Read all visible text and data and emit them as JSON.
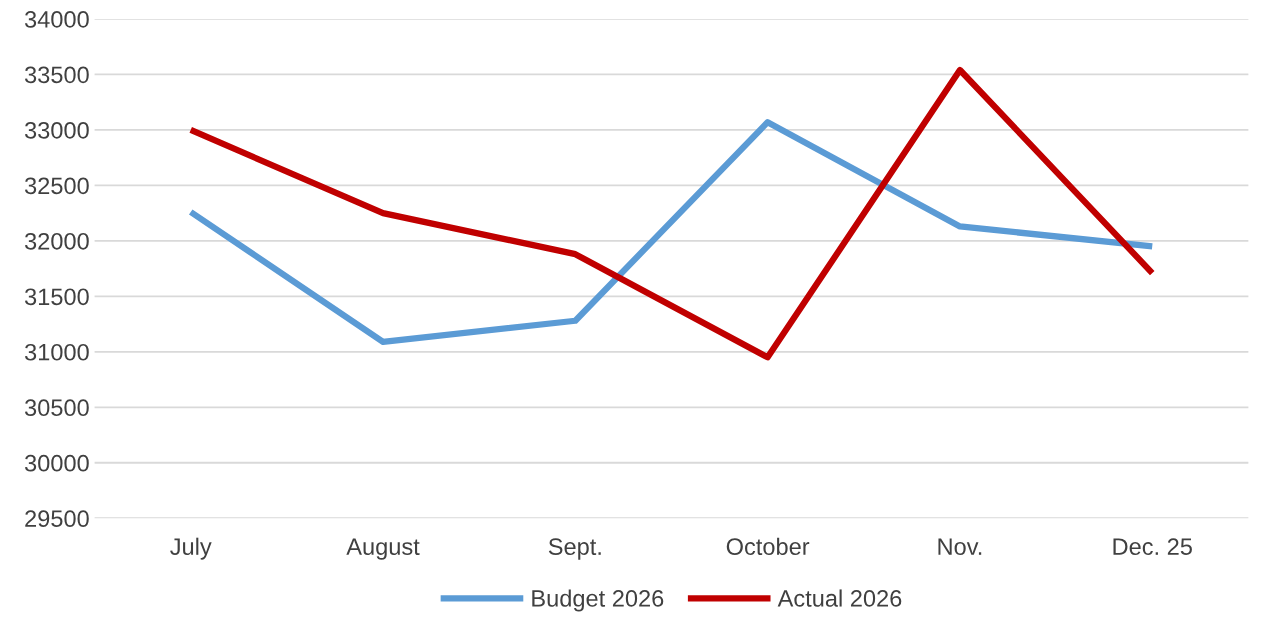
{
  "chart_data": {
    "type": "line",
    "categories": [
      "July",
      "August",
      "Sept.",
      "October",
      "Nov.",
      "Dec. 25"
    ],
    "series": [
      {
        "name": "Budget 2026",
        "color": "#5b9bd5",
        "values": [
          32260,
          31090,
          31280,
          33070,
          32130,
          31950
        ]
      },
      {
        "name": "Actual 2026",
        "color": "#c00000",
        "values": [
          33000,
          32250,
          31880,
          30950,
          33540,
          31710
        ]
      }
    ],
    "ylim": [
      29500,
      34000
    ],
    "yticks": [
      29500,
      30000,
      30500,
      31000,
      31500,
      32000,
      32500,
      33000,
      33500,
      34000
    ],
    "grid": "y",
    "legend": "bottom"
  }
}
